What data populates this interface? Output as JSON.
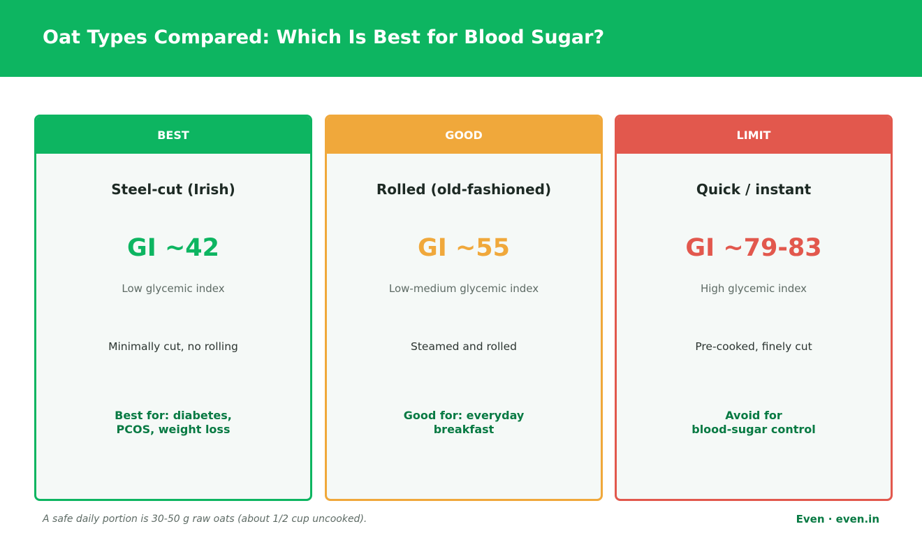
{
  "header": {
    "title": "Oat Types Compared: Which Is Best for Blood Sugar?",
    "background_color": "#0db561"
  },
  "cards": [
    {
      "badge": "BEST",
      "name": "Steel-cut (Irish)",
      "gi": "GI ~42",
      "gi_desc": "Low glycemic index",
      "process": "Minimally cut, no rolling",
      "recommendation_lines": [
        "Best for: diabetes,",
        "PCOS, weight loss"
      ],
      "color": "#0db561"
    },
    {
      "badge": "GOOD",
      "name": "Rolled (old-fashioned)",
      "gi": "GI ~55",
      "gi_desc": "Low-medium glycemic index",
      "process": "Steamed and rolled",
      "recommendation_lines": [
        "Good for: everyday",
        "breakfast"
      ],
      "color": "#f0a83b"
    },
    {
      "badge": "LIMIT",
      "name": "Quick / instant",
      "gi": "GI ~79-83",
      "gi_desc": "High glycemic index",
      "process": "Pre-cooked, finely cut",
      "recommendation_lines": [
        "Avoid for",
        "blood-sugar control"
      ],
      "color": "#e2584d"
    }
  ],
  "footer": {
    "note": "A safe daily portion is 30-50 g raw oats (about 1/2 cup uncooked).",
    "brand": "Even  ·  even.in",
    "recommendation_color": "#087a43"
  }
}
